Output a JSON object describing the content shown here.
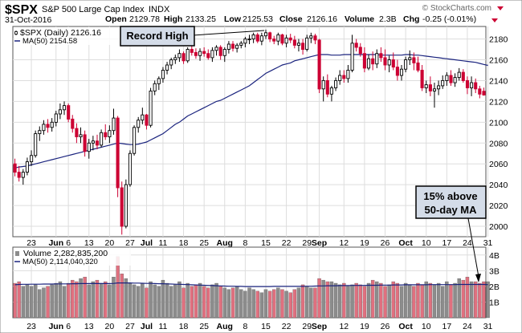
{
  "header": {
    "symbol": "$SPX",
    "name": "S&P 500 Large Cap Index",
    "exchange": "INDX",
    "date": "31-Oct-2016",
    "open_label": "Open",
    "open_value": "2129.78",
    "high_label": "High",
    "high_value": "2133.25",
    "low_label": "Low",
    "low_value": "2125.53",
    "close_label": "Close",
    "close_value": "2126.16",
    "volume_label": "Volume",
    "volume_value": "2.3B",
    "chg_label": "Chg",
    "chg_value": "-0.25 (-0.01%)",
    "credit": "© StockCharts.com"
  },
  "legend": {
    "price": "$SPX (Daily) 2126.16",
    "ma_price": "MA(50) 2154.58",
    "volume": "Volume 2,282,835,200",
    "ma_volume": "MA(50) 2,114,040,320"
  },
  "annotations": {
    "record_high": "Record High",
    "above_ma_line1": "15% above",
    "above_ma_line2": "50-day MA"
  },
  "colors": {
    "up": "#000000",
    "down": "#cc0033",
    "ma": "#1a237e",
    "vol_up": "#8c8c8c",
    "vol_down": "#e0707f",
    "grid": "#dddddd",
    "annotation_fill": "#d4dce8"
  },
  "chart_data": [
    {
      "type": "candlestick",
      "title": "$SPX (Daily)",
      "ylim": [
        1990,
        2192
      ],
      "y_ticks": [
        2000,
        2020,
        2040,
        2060,
        2080,
        2100,
        2120,
        2140,
        2160,
        2180
      ],
      "x_labels": [
        {
          "label": "23",
          "bar": 4,
          "bold": false
        },
        {
          "label": "Jun",
          "bar": 10,
          "bold": true
        },
        {
          "label": "6",
          "bar": 13,
          "bold": false
        },
        {
          "label": "13",
          "bar": 18,
          "bold": false
        },
        {
          "label": "20",
          "bar": 23,
          "bold": false
        },
        {
          "label": "27",
          "bar": 28,
          "bold": false
        },
        {
          "label": "Jul",
          "bar": 32,
          "bold": true
        },
        {
          "label": "11",
          "bar": 36,
          "bold": false
        },
        {
          "label": "18",
          "bar": 41,
          "bold": false
        },
        {
          "label": "25",
          "bar": 46,
          "bold": false
        },
        {
          "label": "Aug",
          "bar": 51,
          "bold": true
        },
        {
          "label": "8",
          "bar": 56,
          "bold": false
        },
        {
          "label": "15",
          "bar": 61,
          "bold": false
        },
        {
          "label": "22",
          "bar": 66,
          "bold": false
        },
        {
          "label": "29",
          "bar": 71,
          "bold": false
        },
        {
          "label": "Sep",
          "bar": 74,
          "bold": true
        },
        {
          "label": "12",
          "bar": 80,
          "bold": false
        },
        {
          "label": "19",
          "bar": 85,
          "bold": false
        },
        {
          "label": "26",
          "bar": 90,
          "bold": false
        },
        {
          "label": "Oct",
          "bar": 95,
          "bold": true
        },
        {
          "label": "10",
          "bar": 100,
          "bold": false
        },
        {
          "label": "17",
          "bar": 105,
          "bold": false
        },
        {
          "label": "24",
          "bar": 110,
          "bold": false
        },
        {
          "label": "31",
          "bar": 115,
          "bold": false
        }
      ],
      "ohlc": [
        [
          2060,
          2065,
          2048,
          2052
        ],
        [
          2052,
          2058,
          2043,
          2047
        ],
        [
          2047,
          2055,
          2040,
          2052
        ],
        [
          2052,
          2066,
          2049,
          2062
        ],
        [
          2062,
          2073,
          2058,
          2068
        ],
        [
          2068,
          2092,
          2066,
          2089
        ],
        [
          2089,
          2096,
          2082,
          2092
        ],
        [
          2092,
          2102,
          2088,
          2098
        ],
        [
          2098,
          2103,
          2090,
          2095
        ],
        [
          2095,
          2104,
          2091,
          2100
        ],
        [
          2100,
          2111,
          2096,
          2108
        ],
        [
          2108,
          2118,
          2103,
          2112
        ],
        [
          2112,
          2120,
          2107,
          2116
        ],
        [
          2116,
          2118,
          2100,
          2103
        ],
        [
          2103,
          2107,
          2090,
          2094
        ],
        [
          2094,
          2099,
          2080,
          2086
        ],
        [
          2086,
          2095,
          2080,
          2088
        ],
        [
          2088,
          2092,
          2067,
          2072
        ],
        [
          2072,
          2084,
          2065,
          2080
        ],
        [
          2080,
          2087,
          2073,
          2082
        ],
        [
          2082,
          2088,
          2074,
          2078
        ],
        [
          2078,
          2093,
          2076,
          2090
        ],
        [
          2090,
          2098,
          2083,
          2086
        ],
        [
          2086,
          2097,
          2080,
          2092
        ],
        [
          2092,
          2113,
          2088,
          2104
        ],
        [
          2104,
          2106,
          2028,
          2037
        ],
        [
          2037,
          2043,
          1992,
          2000
        ],
        [
          2000,
          2045,
          1998,
          2040
        ],
        [
          2040,
          2073,
          2038,
          2070
        ],
        [
          2070,
          2097,
          2068,
          2095
        ],
        [
          2095,
          2105,
          2090,
          2102
        ],
        [
          2102,
          2114,
          2098,
          2107
        ],
        [
          2107,
          2108,
          2093,
          2097
        ],
        [
          2097,
          2133,
          2095,
          2130
        ],
        [
          2130,
          2140,
          2126,
          2137
        ],
        [
          2137,
          2144,
          2131,
          2142
        ],
        [
          2142,
          2153,
          2138,
          2150
        ],
        [
          2150,
          2158,
          2146,
          2155
        ],
        [
          2155,
          2162,
          2151,
          2160
        ],
        [
          2160,
          2165,
          2156,
          2162
        ],
        [
          2162,
          2170,
          2158,
          2166
        ],
        [
          2166,
          2168,
          2156,
          2159
        ],
        [
          2159,
          2172,
          2157,
          2170
        ],
        [
          2170,
          2174,
          2164,
          2167
        ],
        [
          2167,
          2171,
          2161,
          2164
        ],
        [
          2164,
          2171,
          2159,
          2168
        ],
        [
          2168,
          2172,
          2163,
          2166
        ],
        [
          2166,
          2170,
          2160,
          2162
        ],
        [
          2162,
          2172,
          2158,
          2169
        ],
        [
          2169,
          2174,
          2164,
          2172
        ],
        [
          2172,
          2174,
          2160,
          2164
        ],
        [
          2164,
          2172,
          2158,
          2170
        ],
        [
          2170,
          2178,
          2166,
          2175
        ],
        [
          2175,
          2178,
          2168,
          2171
        ],
        [
          2171,
          2176,
          2167,
          2174
        ],
        [
          2174,
          2178,
          2171,
          2176
        ],
        [
          2176,
          2182,
          2172,
          2180
        ],
        [
          2180,
          2184,
          2175,
          2180
        ],
        [
          2180,
          2186,
          2176,
          2184
        ],
        [
          2184,
          2186,
          2176,
          2178
        ],
        [
          2178,
          2186,
          2174,
          2183
        ],
        [
          2183,
          2189,
          2180,
          2186
        ],
        [
          2186,
          2187,
          2177,
          2180
        ],
        [
          2180,
          2183,
          2175,
          2178
        ],
        [
          2178,
          2186,
          2174,
          2184
        ],
        [
          2184,
          2185,
          2174,
          2176
        ],
        [
          2176,
          2184,
          2172,
          2181
        ],
        [
          2181,
          2185,
          2176,
          2179
        ],
        [
          2179,
          2183,
          2171,
          2174
        ],
        [
          2174,
          2180,
          2168,
          2176
        ],
        [
          2176,
          2180,
          2165,
          2170
        ],
        [
          2170,
          2184,
          2168,
          2181
        ],
        [
          2181,
          2186,
          2176,
          2183
        ],
        [
          2183,
          2185,
          2175,
          2179
        ],
        [
          2179,
          2180,
          2128,
          2132
        ],
        [
          2132,
          2144,
          2120,
          2140
        ],
        [
          2140,
          2146,
          2124,
          2127
        ],
        [
          2127,
          2135,
          2120,
          2133
        ],
        [
          2133,
          2143,
          2130,
          2140
        ],
        [
          2140,
          2150,
          2136,
          2145
        ],
        [
          2145,
          2150,
          2138,
          2142
        ],
        [
          2142,
          2155,
          2138,
          2150
        ],
        [
          2150,
          2184,
          2148,
          2176
        ],
        [
          2176,
          2180,
          2168,
          2172
        ],
        [
          2172,
          2176,
          2163,
          2166
        ],
        [
          2166,
          2172,
          2148,
          2152
        ],
        [
          2152,
          2165,
          2150,
          2161
        ],
        [
          2161,
          2168,
          2150,
          2156
        ],
        [
          2156,
          2170,
          2152,
          2166
        ],
        [
          2166,
          2172,
          2158,
          2162
        ],
        [
          2162,
          2170,
          2150,
          2155
        ],
        [
          2155,
          2164,
          2148,
          2160
        ],
        [
          2160,
          2167,
          2150,
          2153
        ],
        [
          2153,
          2160,
          2140,
          2145
        ],
        [
          2145,
          2155,
          2140,
          2151
        ],
        [
          2151,
          2163,
          2148,
          2160
        ],
        [
          2160,
          2169,
          2155,
          2162
        ],
        [
          2162,
          2167,
          2150,
          2157
        ],
        [
          2157,
          2163,
          2148,
          2150
        ],
        [
          2150,
          2155,
          2130,
          2133
        ],
        [
          2133,
          2140,
          2128,
          2136
        ],
        [
          2136,
          2144,
          2125,
          2130
        ],
        [
          2130,
          2138,
          2114,
          2132
        ],
        [
          2132,
          2140,
          2126,
          2135
        ],
        [
          2135,
          2145,
          2132,
          2140
        ],
        [
          2140,
          2148,
          2135,
          2145
        ],
        [
          2145,
          2150,
          2135,
          2138
        ],
        [
          2138,
          2147,
          2134,
          2143
        ],
        [
          2143,
          2152,
          2140,
          2148
        ],
        [
          2148,
          2151,
          2138,
          2140
        ],
        [
          2140,
          2144,
          2127,
          2133
        ],
        [
          2133,
          2144,
          2125,
          2138
        ],
        [
          2138,
          2142,
          2128,
          2132
        ],
        [
          2132,
          2135,
          2123,
          2127
        ],
        [
          2129.78,
          2133.25,
          2125.53,
          2126.16
        ]
      ],
      "ma50": [
        2056,
        2057,
        2057.5,
        2058,
        2059,
        2060,
        2061,
        2062,
        2063,
        2064,
        2065,
        2066,
        2067,
        2068,
        2069,
        2070,
        2071,
        2072,
        2073,
        2074,
        2075,
        2076,
        2077,
        2078,
        2079,
        2080,
        2079.5,
        2079,
        2078.5,
        2078.5,
        2079,
        2080,
        2081,
        2083,
        2085,
        2087,
        2089,
        2092,
        2095,
        2098,
        2100,
        2103,
        2106,
        2108,
        2110,
        2112,
        2114,
        2116,
        2118,
        2120,
        2121,
        2123,
        2125,
        2127,
        2129,
        2131,
        2133,
        2135,
        2138,
        2141,
        2144,
        2147,
        2149,
        2151,
        2153,
        2155,
        2156,
        2157,
        2159,
        2160,
        2161,
        2162,
        2163,
        2164,
        2165,
        2165,
        2165,
        2164.5,
        2164.5,
        2164.5,
        2165,
        2165,
        2165,
        2165,
        2165,
        2165,
        2165,
        2165,
        2165,
        2164.5,
        2164.5,
        2164.5,
        2164.5,
        2164.5,
        2164.5,
        2165,
        2165,
        2164.5,
        2164.5,
        2164,
        2163.5,
        2163,
        2162.5,
        2162,
        2161.5,
        2161,
        2160.5,
        2160,
        2159.5,
        2159,
        2158.5,
        2158,
        2157.5,
        2156.5,
        2155.5,
        2154.58
      ]
    },
    {
      "type": "bar",
      "title": "Volume",
      "ylim": [
        0,
        4.5
      ],
      "y_ticks": [
        1,
        2,
        3,
        4
      ],
      "y_tick_labels": [
        "1B",
        "2B",
        "3B",
        "4B"
      ],
      "values": [
        2.2,
        2.3,
        2.0,
        2.1,
        2.0,
        2.1,
        1.8,
        1.9,
        2.0,
        2.1,
        2.2,
        2.3,
        2.0,
        2.2,
        2.4,
        2.3,
        2.5,
        2.6,
        2.1,
        2.3,
        2.4,
        2.2,
        2.3,
        2.1,
        2.6,
        3.9,
        2.8,
        2.5,
        2.2,
        2.1,
        2.0,
        2.2,
        1.9,
        2.3,
        2.1,
        2.0,
        2.4,
        2.2,
        2.0,
        2.1,
        2.3,
        1.9,
        2.2,
        2.0,
        2.1,
        2.2,
        2.0,
        1.9,
        2.1,
        2.2,
        2.0,
        1.9,
        1.8,
        1.9,
        2.0,
        1.8,
        1.7,
        1.9,
        1.8,
        1.7,
        1.6,
        1.8,
        1.7,
        1.8,
        1.9,
        1.8,
        1.7,
        1.6,
        1.8,
        1.9,
        2.1,
        2.0,
        1.9,
        1.9,
        2.5,
        2.4,
        2.3,
        2.3,
        2.2,
        2.1,
        2.2,
        2.0,
        2.1,
        2.2,
        2.1,
        2.0,
        2.2,
        2.4,
        2.3,
        2.2,
        2.0,
        2.1,
        2.3,
        2.2,
        2.0,
        2.2,
        2.1,
        2.0,
        2.2,
        2.1,
        2.3,
        2.2,
        2.1,
        2.2,
        2.0,
        2.3,
        2.1,
        2.2,
        2.5,
        2.4,
        2.6,
        2.3,
        2.3,
        2.2,
        2.3,
        2.3
      ],
      "ma50": [
        2.1,
        2.12,
        2.13,
        2.13,
        2.14,
        2.14,
        2.14,
        2.15,
        2.15,
        2.15,
        2.16,
        2.16,
        2.16,
        2.16,
        2.17,
        2.17,
        2.18,
        2.18,
        2.18,
        2.18,
        2.18,
        2.18,
        2.18,
        2.18,
        2.19,
        2.22,
        2.22,
        2.22,
        2.22,
        2.21,
        2.21,
        2.2,
        2.19,
        2.19,
        2.18,
        2.17,
        2.17,
        2.16,
        2.15,
        2.14,
        2.13,
        2.12,
        2.11,
        2.1,
        2.09,
        2.08,
        2.07,
        2.06,
        2.05,
        2.04,
        2.03,
        2.02,
        2.01,
        2.01,
        2.0,
        2.0,
        1.99,
        1.99,
        1.99,
        1.99,
        1.99,
        1.99,
        1.99,
        2.0,
        2.0,
        2.0,
        2.0,
        2.0,
        2.0,
        2.0,
        2.0,
        2.01,
        2.01,
        2.02,
        2.03,
        2.03,
        2.04,
        2.04,
        2.04,
        2.05,
        2.05,
        2.05,
        2.06,
        2.06,
        2.06,
        2.06,
        2.07,
        2.07,
        2.07,
        2.08,
        2.08,
        2.08,
        2.09,
        2.09,
        2.09,
        2.1,
        2.1,
        2.1,
        2.1,
        2.1,
        2.1,
        2.11,
        2.11,
        2.11,
        2.11,
        2.11,
        2.11,
        2.11,
        2.12,
        2.12,
        2.12,
        2.12,
        2.12,
        2.12,
        2.12,
        2.11
      ]
    }
  ]
}
